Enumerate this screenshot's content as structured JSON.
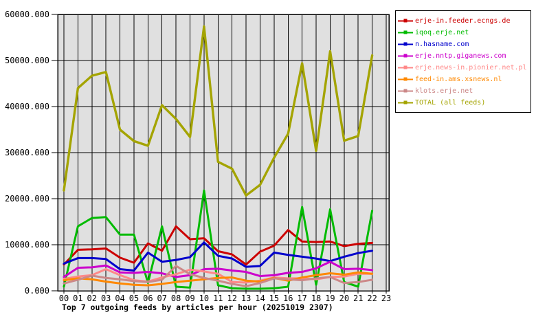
{
  "chart_data": {
    "type": "line",
    "title": "Top 7 outgoing feeds by articles per hour (20251019 2307)",
    "xlabel": "",
    "ylabel": "",
    "ylim": [
      0,
      60000
    ],
    "y_tick_step": 10000,
    "y_tick_labels": [
      "0.000",
      "10000.000",
      "20000.000",
      "30000.000",
      "40000.000",
      "50000.000",
      "60000.000"
    ],
    "x_labels": [
      "00",
      "01",
      "02",
      "03",
      "04",
      "05",
      "06",
      "07",
      "08",
      "09",
      "10",
      "11",
      "12",
      "13",
      "14",
      "15",
      "16",
      "17",
      "18",
      "19",
      "20",
      "21",
      "22",
      "23"
    ],
    "grid": true,
    "plot_background": "#e0e0e0",
    "grid_color": "#000000",
    "legend_position": "top-right",
    "series": [
      {
        "name": "erje-in.feeder.ecngs.de",
        "color": "#cc0000",
        "values": [
          5700,
          8900,
          9000,
          9200,
          7200,
          6100,
          10300,
          8700,
          14000,
          11200,
          11400,
          8600,
          7900,
          5700,
          8500,
          9800,
          13200,
          10700,
          10600,
          10700,
          9700,
          10200,
          10400
        ]
      },
      {
        "name": "iqoq.erje.net",
        "color": "#00bb00",
        "values": [
          900,
          14000,
          15800,
          16000,
          12200,
          12200,
          1700,
          14000,
          900,
          700,
          21800,
          1200,
          550,
          450,
          450,
          550,
          900,
          18200,
          1300,
          17700,
          1900,
          900,
          17400
        ]
      },
      {
        "name": "n.hasname.com",
        "color": "#0000cc",
        "values": [
          5900,
          7100,
          7100,
          6900,
          4700,
          4400,
          8300,
          6300,
          6700,
          7300,
          10500,
          7600,
          7000,
          5200,
          5400,
          8300,
          7800,
          7400,
          7000,
          6450,
          7400,
          8200,
          8700
        ]
      },
      {
        "name": "erje.nntp.giganews.com",
        "color": "#cc00cc",
        "values": [
          3000,
          5000,
          5100,
          5500,
          4000,
          3900,
          4100,
          3800,
          3000,
          3400,
          4700,
          4800,
          4400,
          4100,
          3200,
          3400,
          3900,
          4100,
          4900,
          6300,
          4700,
          4800,
          4500
        ]
      },
      {
        "name": "erje.news-in.pionier.net.pl",
        "color": "#ff8888",
        "values": [
          2600,
          3100,
          3400,
          4700,
          3400,
          2300,
          2000,
          2900,
          3600,
          4600,
          4200,
          3700,
          1900,
          1800,
          2200,
          2900,
          2700,
          2700,
          2500,
          3000,
          3100,
          3700,
          3700
        ]
      },
      {
        "name": "feed-in.ams.xsnews.nl",
        "color": "#ff8800",
        "values": [
          2300,
          2700,
          2500,
          2000,
          1600,
          1300,
          1200,
          1500,
          1900,
          2200,
          2500,
          2800,
          2900,
          2200,
          2000,
          2800,
          2200,
          2900,
          3400,
          3800,
          3500,
          4000,
          3700
        ]
      },
      {
        "name": "klots.erje.net",
        "color": "#cc8888",
        "values": [
          1600,
          2400,
          3300,
          2800,
          2500,
          2100,
          1900,
          2400,
          5400,
          3600,
          2800,
          2200,
          1500,
          1000,
          1700,
          2700,
          2500,
          2300,
          2700,
          3000,
          1700,
          1900,
          2400
        ]
      },
      {
        "name": "TOTAL (all feeds)",
        "color": "#a4a400",
        "values": [
          21800,
          44000,
          46700,
          47500,
          35000,
          32500,
          31500,
          40300,
          37300,
          33400,
          57400,
          28000,
          26500,
          20700,
          23000,
          28900,
          34100,
          49400,
          30400,
          52000,
          32600,
          33600,
          51100
        ]
      }
    ]
  }
}
